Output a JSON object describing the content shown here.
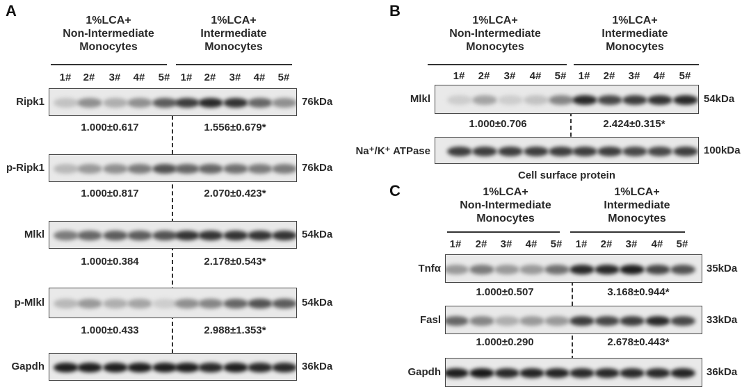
{
  "panels": [
    {
      "letter": "A",
      "groups": [
        "1%LCA+\nNon-Intermediate\nMonocytes",
        "1%LCA+\nIntermediate\nMonocytes"
      ],
      "lanes": [
        "1#",
        "2#",
        "3#",
        "4#",
        "5#",
        "1#",
        "2#",
        "3#",
        "4#",
        "5#"
      ],
      "blots": [
        {
          "label": "Ripk1",
          "kda": "76kDa",
          "values": [
            "1.000±0.617",
            "1.556±0.679*"
          ],
          "band_intensity": [
            0.15,
            0.4,
            0.25,
            0.4,
            0.65,
            0.8,
            0.9,
            0.85,
            0.6,
            0.4
          ]
        },
        {
          "label": "p-Ripk1",
          "kda": "76kDa",
          "values": [
            "1.000±0.817",
            "2.070±0.423*"
          ],
          "band_intensity": [
            0.2,
            0.35,
            0.4,
            0.5,
            0.7,
            0.6,
            0.6,
            0.55,
            0.5,
            0.5
          ]
        },
        {
          "label": "Mlkl",
          "kda": "54kDa",
          "values": [
            "1.000±0.384",
            "2.178±0.543*"
          ],
          "band_intensity": [
            0.5,
            0.6,
            0.65,
            0.65,
            0.7,
            0.85,
            0.85,
            0.85,
            0.85,
            0.85
          ]
        },
        {
          "label": "p-Mlkl",
          "kda": "54kDa",
          "values": [
            "1.000±0.433",
            "2.988±1.353*"
          ],
          "band_intensity": [
            0.2,
            0.35,
            0.25,
            0.3,
            0.1,
            0.4,
            0.45,
            0.6,
            0.7,
            0.65
          ]
        },
        {
          "label": "Gapdh",
          "kda": "36kDa",
          "values": [],
          "band_intensity": [
            0.95,
            0.95,
            0.95,
            0.95,
            0.95,
            0.95,
            0.9,
            0.95,
            0.9,
            0.9
          ]
        }
      ]
    },
    {
      "letter": "B",
      "groups": [
        "1%LCA+\nNon-Intermediate\nMonocytes",
        "1%LCA+\nIntermediate\nMonocytes"
      ],
      "lanes": [
        "1#",
        "2#",
        "3#",
        "4#",
        "5#",
        "1#",
        "2#",
        "3#",
        "4#",
        "5#"
      ],
      "blots": [
        {
          "label": "Mlkl",
          "kda": "54kDa",
          "values": [
            "1.000±0.706",
            "2.424±0.315*"
          ],
          "band_intensity": [
            0.1,
            0.3,
            0.1,
            0.15,
            0.45,
            0.9,
            0.75,
            0.8,
            0.85,
            0.9
          ]
        },
        {
          "label": "Na⁺/K⁺ ATPase",
          "kda": "100kDa",
          "values": [],
          "band_intensity": [
            0.8,
            0.8,
            0.8,
            0.8,
            0.8,
            0.8,
            0.8,
            0.75,
            0.75,
            0.8
          ]
        }
      ],
      "caption": "Cell surface protein"
    },
    {
      "letter": "C",
      "groups": [
        "1%LCA+\nNon-Intermediate\nMonocytes",
        "1%LCA+\nIntermediate\nMonocytes"
      ],
      "lanes": [
        "1#",
        "2#",
        "3#",
        "4#",
        "5#",
        "1#",
        "2#",
        "3#",
        "4#",
        "5#"
      ],
      "blots": [
        {
          "label": "Tnfα",
          "kda": "35kDa",
          "values": [
            "1.000±0.507",
            "3.168±0.944*"
          ],
          "band_intensity": [
            0.35,
            0.5,
            0.35,
            0.35,
            0.55,
            0.9,
            0.9,
            0.95,
            0.75,
            0.7
          ]
        },
        {
          "label": "Fasl",
          "kda": "33kDa",
          "values": [
            "1.000±0.290",
            "2.678±0.443*"
          ],
          "band_intensity": [
            0.6,
            0.45,
            0.25,
            0.35,
            0.35,
            0.8,
            0.75,
            0.8,
            0.9,
            0.75
          ]
        },
        {
          "label": "Gapdh",
          "kda": "36kDa",
          "values": [],
          "band_intensity": [
            0.95,
            0.98,
            0.9,
            0.92,
            0.92,
            0.9,
            0.9,
            0.9,
            0.9,
            0.92
          ]
        }
      ]
    }
  ]
}
